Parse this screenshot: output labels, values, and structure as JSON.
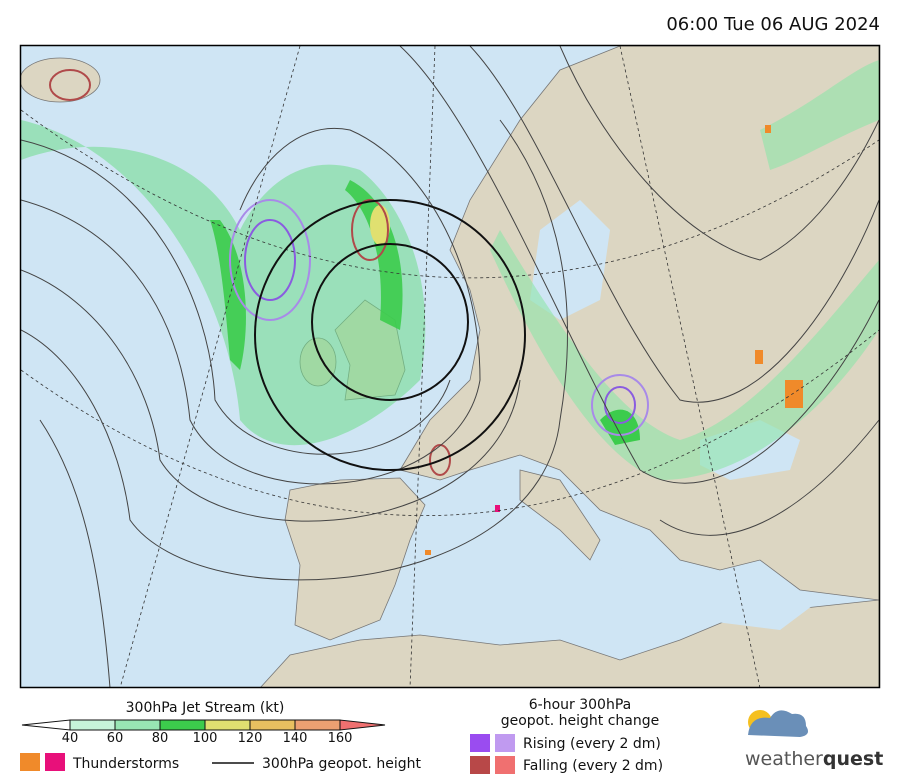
{
  "header": {
    "timestamp": "06:00 Tue 06 AUG 2024"
  },
  "legend": {
    "jet_stream": {
      "title": "300hPa Jet Stream (kt)",
      "ticks": [
        40,
        60,
        80,
        100,
        120,
        140,
        160
      ],
      "colors": [
        "#ffffff",
        "#c6f4da",
        "#98e6b4",
        "#3ccc4c",
        "#e0e070",
        "#e8c060",
        "#eca072",
        "#f07070"
      ]
    },
    "thunderstorms": "Thunderstorms",
    "geopotential": "300hPa geopot. height",
    "height_change": {
      "title_line1": "6-hour 300hPa",
      "title_line2": "geopot. height change",
      "rising": "Rising (every 2 dm)",
      "falling": "Falling (every 2 dm)"
    }
  },
  "brand": {
    "name_light": "weather",
    "name_bold": "quest"
  }
}
